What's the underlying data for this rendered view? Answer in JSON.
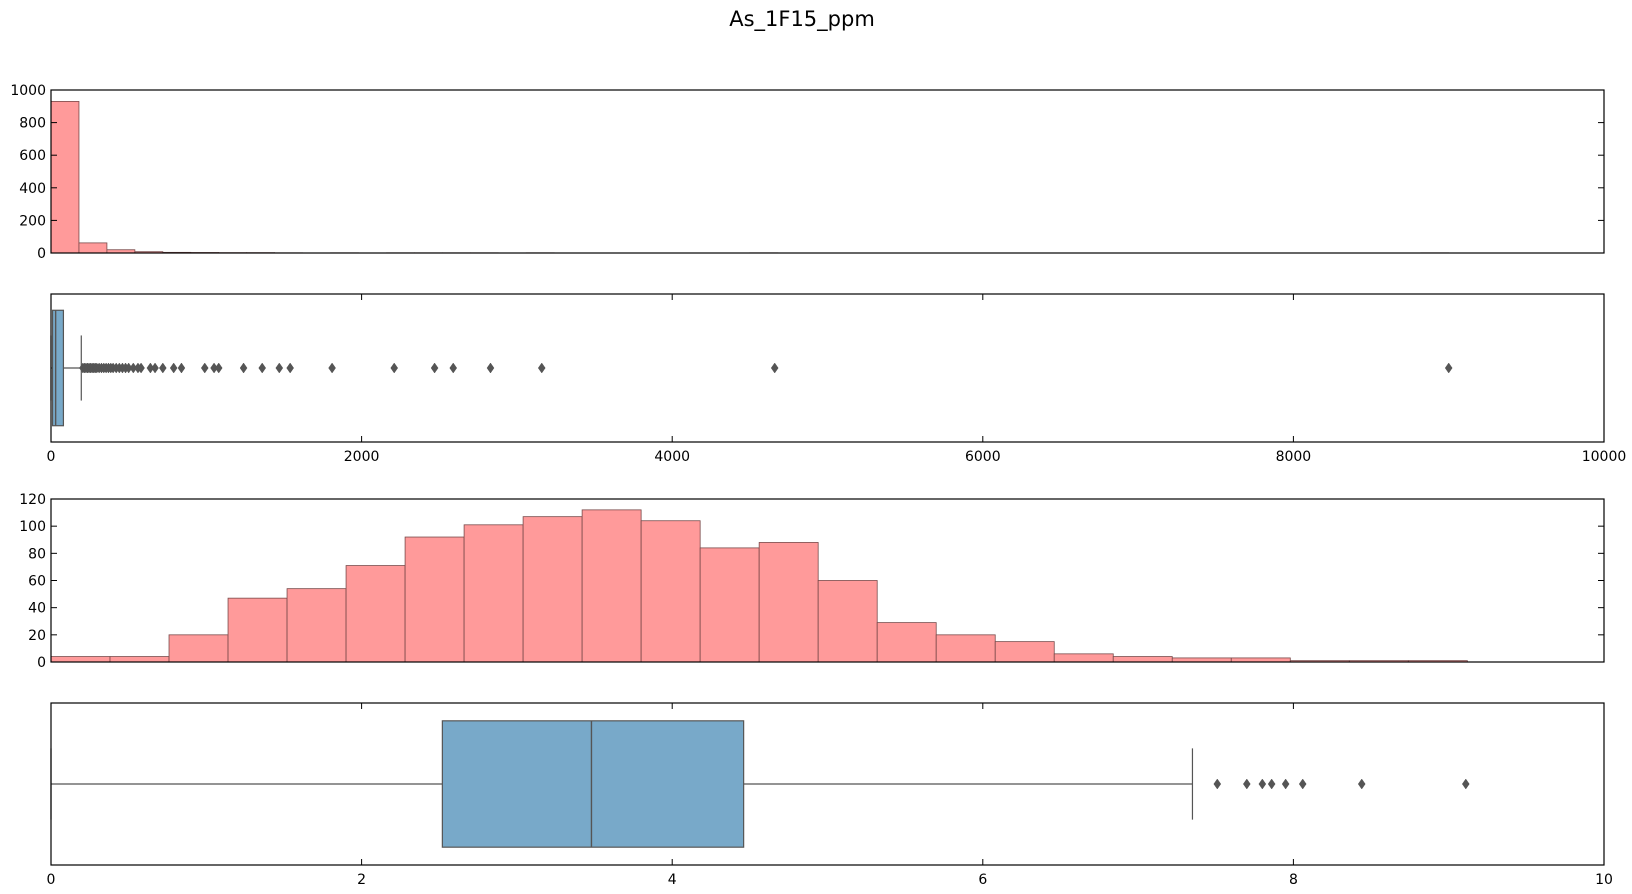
{
  "title": "As_1F15_ppm",
  "colors": {
    "hist_fill": "#ff9a9a",
    "hist_edge": "#7a4a4a",
    "box_fill": "#78a9c9",
    "line": "#555555",
    "frame": "#000000"
  },
  "chart_data": [
    {
      "type": "bar",
      "name": "raw-histogram",
      "title": "",
      "xlabel": "",
      "ylabel": "",
      "xlim": [
        0,
        10000
      ],
      "ylim": [
        0,
        1000
      ],
      "yticks": [
        0,
        200,
        400,
        600,
        800,
        1000
      ],
      "show_xticklabels": false,
      "bin_edges": [
        0,
        180,
        360,
        540,
        720,
        900,
        1080,
        1260,
        1440,
        1620,
        1800,
        1980,
        2160,
        2340,
        2520,
        2700,
        2880,
        3060,
        3240,
        3420,
        3600,
        3780,
        3960,
        4140,
        4320,
        4500,
        4680,
        4860,
        5040,
        5220,
        5400,
        5580,
        5760,
        5940,
        6120,
        6300,
        6480,
        6660,
        6840,
        7020,
        7200,
        7380,
        7560,
        7740,
        7920,
        8100,
        8280,
        8460,
        8640,
        8820,
        9000
      ],
      "values": [
        930,
        62,
        20,
        8,
        4,
        3,
        2,
        2,
        1,
        0,
        1,
        0,
        1,
        1,
        1,
        1,
        0,
        1,
        0,
        0,
        0,
        0,
        0,
        0,
        0,
        1,
        0,
        0,
        0,
        0,
        0,
        0,
        0,
        0,
        0,
        0,
        0,
        0,
        0,
        0,
        0,
        0,
        0,
        0,
        0,
        0,
        0,
        0,
        0,
        1
      ]
    },
    {
      "type": "box",
      "name": "raw-boxplot",
      "xlim": [
        0,
        10000
      ],
      "xticks": [
        0,
        2000,
        4000,
        6000,
        8000,
        10000
      ],
      "q1": 10,
      "median": 30,
      "q3": 80,
      "whisker_low": 0,
      "whisker_high": 195,
      "outliers": [
        205,
        215,
        225,
        235,
        245,
        255,
        265,
        275,
        285,
        295,
        310,
        325,
        340,
        355,
        370,
        385,
        400,
        420,
        440,
        460,
        480,
        500,
        530,
        560,
        580,
        640,
        670,
        720,
        790,
        840,
        990,
        1050,
        1080,
        1240,
        1360,
        1470,
        1540,
        1810,
        2210,
        2470,
        2590,
        2830,
        3160,
        4660,
        9000
      ]
    },
    {
      "type": "bar",
      "name": "log-histogram",
      "title": "",
      "xlabel": "",
      "ylabel": "",
      "xlim": [
        0,
        10
      ],
      "ylim": [
        0,
        120
      ],
      "yticks": [
        0,
        20,
        40,
        60,
        80,
        100,
        120
      ],
      "show_xticklabels": false,
      "bin_edges": [
        0,
        0.38,
        0.76,
        1.14,
        1.52,
        1.9,
        2.28,
        2.66,
        3.04,
        3.42,
        3.8,
        4.18,
        4.56,
        4.94,
        5.32,
        5.7,
        6.08,
        6.46,
        6.84,
        7.22,
        7.6,
        7.98,
        8.36,
        8.74,
        9.12
      ],
      "values": [
        4,
        4,
        20,
        47,
        54,
        71,
        92,
        101,
        107,
        112,
        104,
        84,
        88,
        60,
        29,
        20,
        15,
        6,
        4,
        3,
        3,
        1,
        1,
        1
      ]
    },
    {
      "type": "box",
      "name": "log-boxplot",
      "xlim": [
        0,
        10
      ],
      "xticks": [
        0,
        2,
        4,
        6,
        8,
        10
      ],
      "q1": 2.52,
      "median": 3.48,
      "q3": 4.46,
      "whisker_low": 0,
      "whisker_high": 7.35,
      "outliers": [
        7.51,
        7.7,
        7.8,
        7.86,
        7.95,
        8.06,
        8.44,
        9.11
      ]
    }
  ]
}
